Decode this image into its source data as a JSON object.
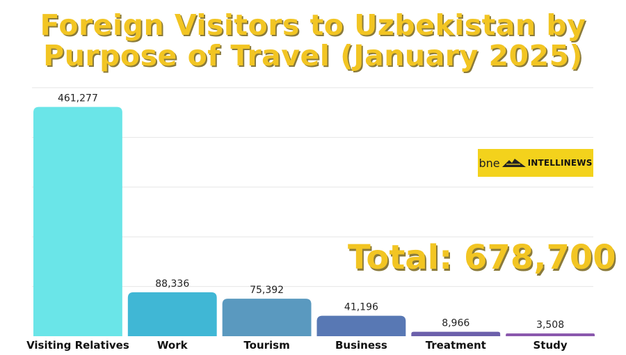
{
  "title_line1": "Foreign Visitors to Uzbekistan by",
  "title_line2": "Purpose of Travel (January 2025)",
  "total_label": "Total: 678,700",
  "logo": {
    "bne": "bne",
    "intellinews": "INTELLINEWS",
    "icon": "mountain-icon",
    "color": "#f3d21c"
  },
  "chart_data": {
    "type": "bar",
    "categories": [
      "Visiting Relatives",
      "Work",
      "Tourism",
      "Business",
      "Treatment",
      "Study"
    ],
    "values": [
      461277,
      88336,
      75392,
      41196,
      8966,
      3508
    ],
    "value_labels": [
      "461,277",
      "88,336",
      "75,392",
      "41,196",
      "8,966",
      "3,508"
    ],
    "colors": [
      "#6ae5e8",
      "#40b7d5",
      "#5a99bf",
      "#5878b4",
      "#6c60ab",
      "#8a58ad"
    ],
    "ylim": [
      0,
      500000
    ],
    "grid": true
  }
}
